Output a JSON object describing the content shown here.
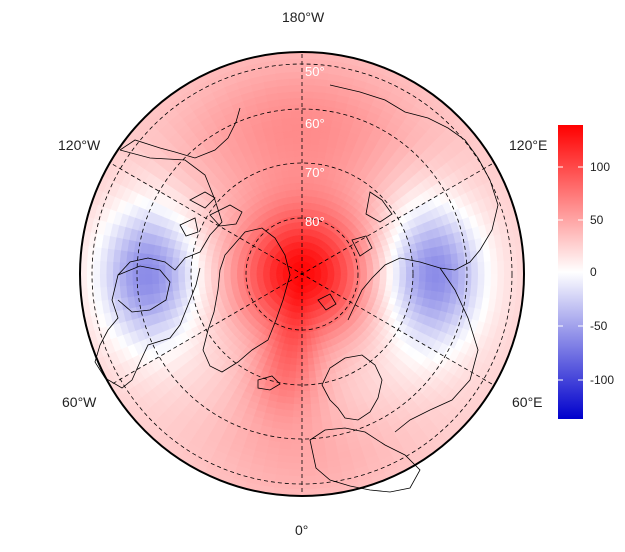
{
  "map": {
    "projection": "polar stereographic (north pole)",
    "center_latitude": 90,
    "bottom_meridian": "0°",
    "longitude_labels": {
      "top": "180°W",
      "upper_left": "120°W",
      "upper_right": "120°E",
      "lower_left": "60°W",
      "lower_right": "60°E",
      "bottom": "0°"
    },
    "latitude_labels": [
      "50°",
      "60°",
      "70°",
      "80°"
    ],
    "graticule_style": "dashed",
    "colormap": "blue-white-red diverging",
    "colors": {
      "negative_max": "#0000cc",
      "zero": "#ffffff",
      "positive_max": "#ff0000",
      "coastline": "#000000"
    }
  },
  "colorbar": {
    "range": [
      -135,
      135
    ],
    "ticks": [
      "100",
      "50",
      "0",
      "-50",
      "-100"
    ]
  },
  "field_features": [
    {
      "region": "North Pole / Arctic Ocean",
      "sign": "positive",
      "approx_value": 130
    },
    {
      "region": "Greenland",
      "sign": "positive",
      "approx_value": 90
    },
    {
      "region": "Central Russia / Siberia",
      "sign": "negative",
      "approx_value": -25
    },
    {
      "region": "Northern Canada / Hudson Bay",
      "sign": "negative",
      "approx_value": -30
    },
    {
      "region": "North Pacific",
      "sign": "positive",
      "approx_value": 80
    },
    {
      "region": "Europe / North Atlantic",
      "sign": "positive",
      "approx_value": 50
    }
  ]
}
